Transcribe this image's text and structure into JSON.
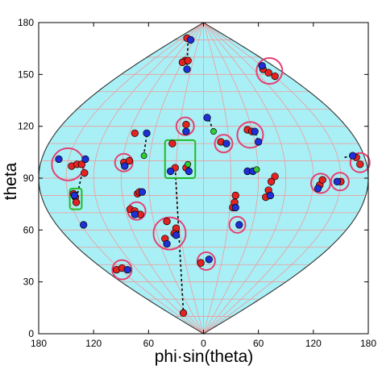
{
  "chart_data": {
    "type": "scatter",
    "projection": "sinusoidal",
    "xlabel": "phi·sin(theta)",
    "ylabel": "theta",
    "xlim": [
      -180,
      180
    ],
    "ylim": [
      0,
      180
    ],
    "x_ticks": [
      -180,
      -120,
      -60,
      0,
      60,
      120,
      180
    ],
    "x_tick_labels": [
      "180",
      "120",
      "60",
      "0",
      "60",
      "120",
      "180"
    ],
    "y_ticks": [
      0,
      30,
      60,
      90,
      120,
      150,
      180
    ],
    "y_tick_labels": [
      "0",
      "30",
      "60",
      "90",
      "120",
      "150",
      "180"
    ],
    "grid": true,
    "colors": {
      "region_fill": "#a8f0f6",
      "grid": "#ef9a9a",
      "red_point": "#e52222",
      "blue_point": "#1f2fd6",
      "green_point": "#33cc33",
      "circle_marker": "#e64072",
      "box_marker": "#22bb22"
    },
    "series": [
      {
        "color": "red",
        "points": [
          {
            "x": -18,
            "y": 171
          },
          {
            "x": -20,
            "y": 158
          },
          {
            "x": -23,
            "y": 157
          },
          {
            "x": -17,
            "y": 158
          },
          {
            "x": 65,
            "y": 153
          },
          {
            "x": 71,
            "y": 151
          },
          {
            "x": 78,
            "y": 149
          },
          {
            "x": 48,
            "y": 118
          },
          {
            "x": 53,
            "y": 117
          },
          {
            "x": -19,
            "y": 121
          },
          {
            "x": -75,
            "y": 116
          },
          {
            "x": 19,
            "y": 111
          },
          {
            "x": -34,
            "y": 110
          },
          {
            "x": -144,
            "y": 97
          },
          {
            "x": -138,
            "y": 98
          },
          {
            "x": -133,
            "y": 98
          },
          {
            "x": -87,
            "y": 99
          },
          {
            "x": -81,
            "y": 100
          },
          {
            "x": -130,
            "y": 93
          },
          {
            "x": -140,
            "y": 79
          },
          {
            "x": -142,
            "y": 81
          },
          {
            "x": -139,
            "y": 76
          },
          {
            "x": -19,
            "y": 96
          },
          {
            "x": -31,
            "y": 96
          },
          {
            "x": 78,
            "y": 91
          },
          {
            "x": 74,
            "y": 88
          },
          {
            "x": 71,
            "y": 83
          },
          {
            "x": 68,
            "y": 79
          },
          {
            "x": 127,
            "y": 86
          },
          {
            "x": 130,
            "y": 89
          },
          {
            "x": 150,
            "y": 88
          },
          {
            "x": 167,
            "y": 102
          },
          {
            "x": 171,
            "y": 98
          },
          {
            "x": -72,
            "y": 81
          },
          {
            "x": -70,
            "y": 82
          },
          {
            "x": -80,
            "y": 72
          },
          {
            "x": -75,
            "y": 71
          },
          {
            "x": -69,
            "y": 69
          },
          {
            "x": 32,
            "y": 73
          },
          {
            "x": 34,
            "y": 76
          },
          {
            "x": 35,
            "y": 80
          },
          {
            "x": -40,
            "y": 65
          },
          {
            "x": -30,
            "y": 61
          },
          {
            "x": -42,
            "y": 55
          },
          {
            "x": -32,
            "y": 58
          },
          {
            "x": -95,
            "y": 37
          },
          {
            "x": -89,
            "y": 38
          },
          {
            "x": -22,
            "y": 12
          },
          {
            "x": -3,
            "y": 41
          }
        ]
      },
      {
        "color": "blue",
        "points": [
          {
            "x": -14,
            "y": 170
          },
          {
            "x": -18,
            "y": 153
          },
          {
            "x": 64,
            "y": 155
          },
          {
            "x": 56,
            "y": 117
          },
          {
            "x": 60,
            "y": 111
          },
          {
            "x": 4,
            "y": 125
          },
          {
            "x": -62,
            "y": 116
          },
          {
            "x": -19,
            "y": 117
          },
          {
            "x": 25,
            "y": 110
          },
          {
            "x": -158,
            "y": 101
          },
          {
            "x": -129,
            "y": 101
          },
          {
            "x": -86,
            "y": 97
          },
          {
            "x": -16,
            "y": 94
          },
          {
            "x": -36,
            "y": 94
          },
          {
            "x": 48,
            "y": 94
          },
          {
            "x": 54,
            "y": 94
          },
          {
            "x": 125,
            "y": 84
          },
          {
            "x": 146,
            "y": 88
          },
          {
            "x": 163,
            "y": 103
          },
          {
            "x": -141,
            "y": 80
          },
          {
            "x": -67,
            "y": 82
          },
          {
            "x": -75,
            "y": 69
          },
          {
            "x": 35,
            "y": 73
          },
          {
            "x": 73,
            "y": 80
          },
          {
            "x": 39,
            "y": 63
          },
          {
            "x": -131,
            "y": 63
          },
          {
            "x": -40,
            "y": 52
          },
          {
            "x": -30,
            "y": 57
          },
          {
            "x": -83,
            "y": 37
          },
          {
            "x": 6,
            "y": 43
          }
        ]
      },
      {
        "color": "green",
        "points": [
          {
            "x": -65,
            "y": 103
          },
          {
            "x": 11,
            "y": 117
          },
          {
            "x": -17,
            "y": 98
          },
          {
            "x": 58,
            "y": 95
          }
        ]
      }
    ],
    "dashed_links": [
      [
        {
          "x": -17,
          "y": 168
        },
        {
          "x": -18,
          "y": 155
        }
      ],
      [
        {
          "x": 6,
          "y": 124
        },
        {
          "x": 11,
          "y": 117
        }
      ],
      [
        {
          "x": -62,
          "y": 115
        },
        {
          "x": -65,
          "y": 104
        }
      ],
      [
        {
          "x": 57,
          "y": 116
        },
        {
          "x": 60,
          "y": 111
        }
      ],
      [
        {
          "x": -130,
          "y": 99
        },
        {
          "x": -138,
          "y": 80
        }
      ],
      [
        {
          "x": -31,
          "y": 96
        },
        {
          "x": -22,
          "y": 13
        }
      ],
      [
        {
          "x": 49,
          "y": 94
        },
        {
          "x": 57,
          "y": 95
        }
      ],
      [
        {
          "x": 74,
          "y": 87
        },
        {
          "x": 73,
          "y": 81
        }
      ],
      [
        {
          "x": 154,
          "y": 102
        },
        {
          "x": 164,
          "y": 103
        }
      ],
      [
        {
          "x": -70,
          "y": 82
        },
        {
          "x": -72,
          "y": 80
        }
      ]
    ],
    "circle_markers": [
      {
        "x": 72,
        "y": 152,
        "r": 16
      },
      {
        "x": 51,
        "y": 115,
        "r": 16
      },
      {
        "x": -20,
        "y": 120,
        "r": 11
      },
      {
        "x": 22,
        "y": 110,
        "r": 11
      },
      {
        "x": -148,
        "y": 98,
        "r": 20
      },
      {
        "x": -87,
        "y": 99,
        "r": 11
      },
      {
        "x": 128,
        "y": 87,
        "r": 12
      },
      {
        "x": 149,
        "y": 88,
        "r": 11
      },
      {
        "x": 171,
        "y": 99,
        "r": 12
      },
      {
        "x": -73,
        "y": 71,
        "r": 11
      },
      {
        "x": 37,
        "y": 63,
        "r": 10
      },
      {
        "x": -37,
        "y": 58,
        "r": 20
      },
      {
        "x": 3,
        "y": 42,
        "r": 11
      },
      {
        "x": -89,
        "y": 37,
        "r": 12
      }
    ],
    "box_markers": [
      {
        "x0": -42,
        "y0": 90,
        "x1": -9,
        "y1": 112
      },
      {
        "x0": -146,
        "y0": 72,
        "x1": -133,
        "y1": 84
      }
    ]
  }
}
